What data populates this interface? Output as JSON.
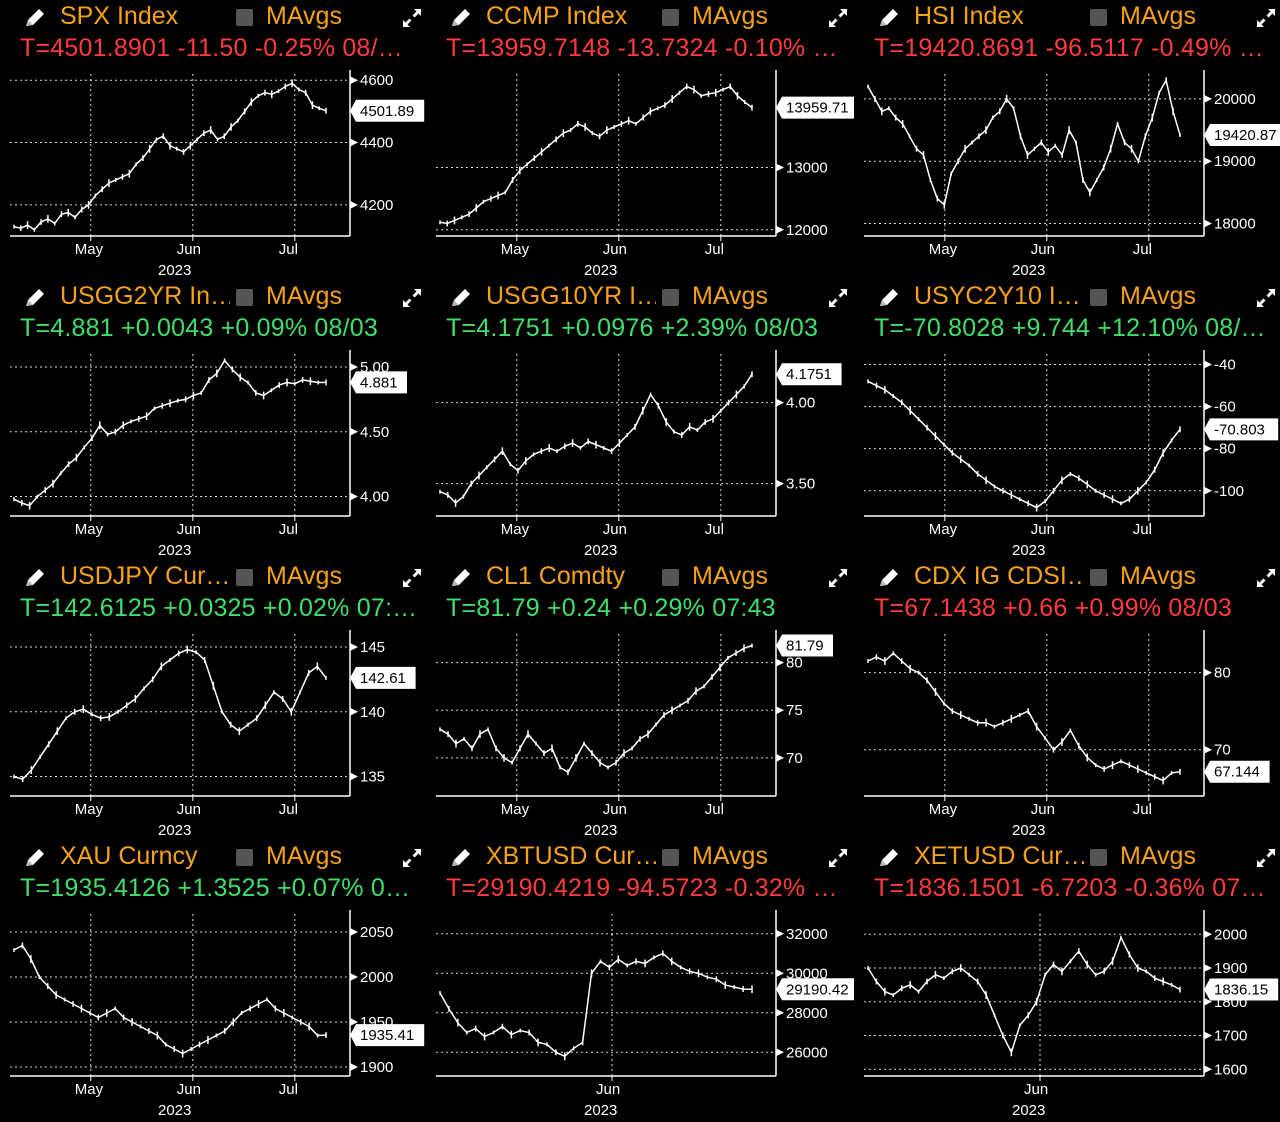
{
  "panels": [
    {
      "ticker": "SPX Index",
      "mavgs": "MAvgs",
      "quote": "T=4501.8901 -11.50 -0.25% 08/…",
      "quote_color": "neg"
    },
    {
      "ticker": "CCMP Index",
      "mavgs": "MAvgs",
      "quote": "T=13959.7148 -13.7324 -0.10% …",
      "quote_color": "neg"
    },
    {
      "ticker": "HSI Index",
      "mavgs": "MAvgs",
      "quote": "T=19420.8691 -96.5117 -0.49% …",
      "quote_color": "neg"
    },
    {
      "ticker": "USGG2YR In…",
      "mavgs": "MAvgs",
      "quote": "T=4.881 +0.0043 +0.09% 08/03",
      "quote_color": "pos"
    },
    {
      "ticker": "USGG10YR I…",
      "mavgs": "MAvgs",
      "quote": "T=4.1751 +0.0976 +2.39% 08/03",
      "quote_color": "pos"
    },
    {
      "ticker": "USYC2Y10 I…",
      "mavgs": "MAvgs",
      "quote": "T=-70.8028 +9.744 +12.10% 08/…",
      "quote_color": "pos"
    },
    {
      "ticker": "USDJPY Cur…",
      "mavgs": "MAvgs",
      "quote": "T=142.6125 +0.0325 +0.02% 07:…",
      "quote_color": "pos"
    },
    {
      "ticker": "CL1 Comdty",
      "mavgs": "MAvgs",
      "quote": "T=81.79 +0.24 +0.29% 07:43",
      "quote_color": "pos"
    },
    {
      "ticker": "CDX IG CDSI…",
      "mavgs": "MAvgs",
      "quote": "T=67.1438 +0.66 +0.99% 08/03",
      "quote_color": "neg"
    },
    {
      "ticker": "XAU Curncy",
      "mavgs": "MAvgs",
      "quote": "T=1935.4126 +1.3525 +0.07% 0…",
      "quote_color": "pos"
    },
    {
      "ticker": "XBTUSD Cur…",
      "mavgs": "MAvgs",
      "quote": "T=29190.4219 -94.5723 -0.32% …",
      "quote_color": "neg"
    },
    {
      "ticker": "XETUSD Cur…",
      "mavgs": "MAvgs",
      "quote": "T=1836.1501 -6.7203 -0.36% 07…",
      "quote_color": "neg"
    }
  ],
  "colors": {
    "ticker": "#f7a11a",
    "negative": "#ff3b3b",
    "positive": "#3fe06a",
    "line": "#ffffff",
    "background": "#000000"
  },
  "icons": {
    "edit": "pencil-icon",
    "toggle": "checkbox-icon",
    "fullscreen": "expand-icon"
  },
  "chart_data": [
    {
      "type": "line",
      "title": "SPX Index",
      "year": "2023",
      "x_labels": [
        "May",
        "Jun",
        "Jul"
      ],
      "yticks": [
        "4600",
        "4400",
        "4200"
      ],
      "ylim": [
        4100,
        4620
      ],
      "last": "4501.89",
      "values": [
        4130,
        4125,
        4135,
        4120,
        4145,
        4155,
        4140,
        4170,
        4175,
        4160,
        4185,
        4200,
        4230,
        4250,
        4270,
        4280,
        4290,
        4300,
        4330,
        4350,
        4380,
        4410,
        4420,
        4390,
        4380,
        4370,
        4390,
        4410,
        4430,
        4440,
        4410,
        4420,
        4450,
        4470,
        4500,
        4530,
        4550,
        4560,
        4555,
        4565,
        4580,
        4590,
        4570,
        4560,
        4520,
        4510,
        4501.89
      ]
    },
    {
      "type": "line",
      "title": "CCMP Index",
      "year": "2023",
      "x_labels": [
        "May",
        "Jun",
        "Jul"
      ],
      "yticks": [
        "13000",
        "12000"
      ],
      "ylim": [
        11900,
        14500
      ],
      "last": "13959.71",
      "values": [
        12120,
        12100,
        12150,
        12200,
        12250,
        12350,
        12450,
        12500,
        12550,
        12600,
        12800,
        12950,
        13050,
        13150,
        13250,
        13350,
        13450,
        13550,
        13600,
        13700,
        13650,
        13550,
        13500,
        13600,
        13650,
        13700,
        13750,
        13700,
        13800,
        13900,
        13950,
        14000,
        14100,
        14200,
        14300,
        14250,
        14150,
        14180,
        14200,
        14250,
        14300,
        14150,
        14050,
        13959.71
      ]
    },
    {
      "type": "line",
      "title": "HSI Index",
      "year": "2023",
      "x_labels": [
        "May",
        "Jun",
        "Jul"
      ],
      "yticks": [
        "20000",
        "19000",
        "18000"
      ],
      "ylim": [
        17800,
        20400
      ],
      "last": "19420.87",
      "values": [
        20200,
        20000,
        19800,
        19850,
        19700,
        19600,
        19400,
        19200,
        19100,
        18700,
        18400,
        18300,
        18800,
        19000,
        19200,
        19300,
        19400,
        19500,
        19700,
        19800,
        20000,
        19850,
        19400,
        19100,
        19200,
        19300,
        19150,
        19250,
        19100,
        19500,
        19300,
        18700,
        18500,
        18700,
        18900,
        19200,
        19600,
        19300,
        19200,
        19000,
        19400,
        19700,
        20100,
        20300,
        19800,
        19420.87
      ]
    },
    {
      "type": "line",
      "title": "USGG2YR Index",
      "year": "2023",
      "x_labels": [
        "May",
        "Jun",
        "Jul"
      ],
      "yticks": [
        "5.00",
        "4.50",
        "4.00"
      ],
      "ylim": [
        3.85,
        5.1
      ],
      "last": "4.881",
      "values": [
        3.98,
        3.95,
        3.93,
        4.0,
        4.05,
        4.1,
        4.18,
        4.25,
        4.3,
        4.38,
        4.45,
        4.55,
        4.48,
        4.5,
        4.55,
        4.58,
        4.6,
        4.62,
        4.68,
        4.7,
        4.72,
        4.74,
        4.75,
        4.78,
        4.8,
        4.9,
        4.95,
        5.05,
        4.98,
        4.92,
        4.88,
        4.8,
        4.78,
        4.82,
        4.86,
        4.88,
        4.87,
        4.9,
        4.89,
        4.88,
        4.881
      ]
    },
    {
      "type": "line",
      "title": "USGG10YR Index",
      "year": "2023",
      "x_labels": [
        "May",
        "Jun",
        "Jul"
      ],
      "yticks": [
        "4.00",
        "3.50"
      ],
      "ylim": [
        3.3,
        4.3
      ],
      "last": "4.1751",
      "values": [
        3.45,
        3.43,
        3.38,
        3.42,
        3.5,
        3.55,
        3.6,
        3.65,
        3.7,
        3.62,
        3.58,
        3.64,
        3.68,
        3.7,
        3.72,
        3.7,
        3.73,
        3.75,
        3.72,
        3.76,
        3.74,
        3.72,
        3.7,
        3.75,
        3.8,
        3.85,
        3.95,
        4.05,
        3.98,
        3.88,
        3.82,
        3.8,
        3.85,
        3.83,
        3.88,
        3.9,
        3.95,
        4.0,
        4.05,
        4.1,
        4.1751
      ]
    },
    {
      "type": "line",
      "title": "USYC2Y10 Index",
      "year": "2023",
      "x_labels": [
        "May",
        "Jun",
        "Jul"
      ],
      "yticks": [
        "-40",
        "-60",
        "-80",
        "-100"
      ],
      "ylim": [
        -112,
        -35
      ],
      "last": "-70.803",
      "values": [
        -48,
        -50,
        -52,
        -55,
        -58,
        -62,
        -66,
        -70,
        -74,
        -78,
        -82,
        -85,
        -88,
        -92,
        -95,
        -98,
        -100,
        -102,
        -104,
        -106,
        -108,
        -105,
        -100,
        -95,
        -92,
        -94,
        -97,
        -100,
        -102,
        -104,
        -106,
        -104,
        -100,
        -96,
        -90,
        -82,
        -76,
        -70.8
      ]
    },
    {
      "type": "line",
      "title": "USDJPY Curncy",
      "year": "2023",
      "x_labels": [
        "May",
        "Jun",
        "Jul"
      ],
      "yticks": [
        "145",
        "140",
        "135"
      ],
      "ylim": [
        133.5,
        146
      ],
      "last": "142.61",
      "values": [
        135,
        134.8,
        135.5,
        136.5,
        137.5,
        138.5,
        139.5,
        140,
        140.2,
        139.8,
        139.5,
        139.6,
        140,
        140.5,
        141,
        141.8,
        142.5,
        143.5,
        144,
        144.5,
        144.8,
        144.6,
        144,
        142,
        140,
        139,
        138.5,
        139,
        139.5,
        140.5,
        141.5,
        141,
        140,
        141.5,
        143,
        143.5,
        142.61
      ]
    },
    {
      "type": "line",
      "title": "CL1 Comdty",
      "year": "2023",
      "x_labels": [
        "May",
        "Jun",
        "Jul"
      ],
      "yticks": [
        "80",
        "75",
        "70"
      ],
      "ylim": [
        66,
        83
      ],
      "last": "81.79",
      "values": [
        73,
        72.5,
        71.5,
        72,
        71,
        72.5,
        73,
        71,
        70,
        69.5,
        71,
        72.5,
        71.5,
        70.5,
        71,
        69,
        68.5,
        70,
        71.5,
        70.5,
        69.5,
        69,
        69.5,
        70.5,
        71,
        72,
        72.5,
        73.5,
        74.5,
        75,
        75.5,
        76,
        77,
        77.5,
        78.5,
        79.5,
        80.5,
        81,
        81.5,
        81.79
      ]
    },
    {
      "type": "line",
      "title": "CDX IG CDSI",
      "year": "2023",
      "x_labels": [
        "May",
        "Jun",
        "Jul"
      ],
      "yticks": [
        "80",
        "70"
      ],
      "ylim": [
        64,
        85
      ],
      "last": "67.144",
      "values": [
        81.5,
        82,
        81.5,
        82.5,
        81.5,
        80.5,
        80,
        79,
        77.5,
        76,
        75,
        74.5,
        74,
        73.5,
        73.5,
        73,
        73.5,
        74,
        74.5,
        75,
        73,
        71.5,
        70,
        71,
        72.5,
        70.5,
        69,
        68,
        67.5,
        68,
        68.5,
        68,
        67.5,
        67,
        66.5,
        66,
        67,
        67.144
      ]
    },
    {
      "type": "line",
      "title": "XAU Curncy",
      "year": "2023",
      "x_labels": [
        "May",
        "Jun",
        "Jul"
      ],
      "yticks": [
        "2050",
        "2000",
        "1950",
        "1900"
      ],
      "ylim": [
        1890,
        2070
      ],
      "last": "1935.41",
      "values": [
        2030,
        2035,
        2020,
        2000,
        1990,
        1980,
        1975,
        1970,
        1965,
        1960,
        1955,
        1960,
        1965,
        1955,
        1950,
        1945,
        1940,
        1935,
        1925,
        1920,
        1915,
        1920,
        1925,
        1930,
        1935,
        1940,
        1950,
        1960,
        1965,
        1970,
        1975,
        1965,
        1960,
        1955,
        1950,
        1945,
        1935,
        1935.41
      ]
    },
    {
      "type": "line",
      "title": "XBTUSD Curncy",
      "year": "2023",
      "x_labels": [
        "Jun"
      ],
      "yticks": [
        "32000",
        "30000",
        "28000",
        "26000"
      ],
      "ylim": [
        24800,
        33000
      ],
      "last": "29190.42",
      "values": [
        29000,
        28200,
        27500,
        27000,
        27200,
        26800,
        27000,
        27300,
        26900,
        27100,
        27000,
        26500,
        26400,
        26000,
        25800,
        26200,
        26500,
        30000,
        30600,
        30300,
        30700,
        30400,
        30600,
        30500,
        30800,
        31000,
        30600,
        30300,
        30100,
        30000,
        29800,
        29700,
        29400,
        29300,
        29200,
        29190.42
      ]
    },
    {
      "type": "line",
      "title": "XETUSD Curncy",
      "year": "2023",
      "x_labels": [
        "Jun"
      ],
      "yticks": [
        "2000",
        "1900",
        "1800",
        "1700",
        "1600"
      ],
      "ylim": [
        1580,
        2060
      ],
      "last": "1836.15",
      "values": [
        1900,
        1860,
        1830,
        1820,
        1840,
        1850,
        1830,
        1860,
        1880,
        1870,
        1890,
        1900,
        1880,
        1860,
        1820,
        1760,
        1700,
        1650,
        1730,
        1760,
        1800,
        1880,
        1910,
        1890,
        1920,
        1950,
        1910,
        1880,
        1890,
        1920,
        1990,
        1940,
        1900,
        1890,
        1870,
        1860,
        1850,
        1836.15
      ]
    }
  ]
}
